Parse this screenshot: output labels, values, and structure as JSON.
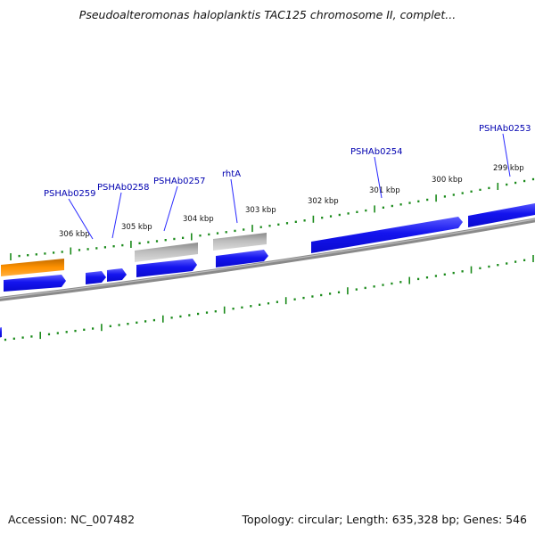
{
  "title": "Pseudoalteromonas haloplanktis TAC125 chromosome II, complet...",
  "footer": {
    "accession": "Accession: NC_007482",
    "summary": "Topology: circular; Length: 635,328 bp; Genes: 546"
  },
  "colors": {
    "forward_gene": "#1a1af0",
    "forward_gene_light": "#6a6aff",
    "reverse_gene": "#b8b8b8",
    "orange_feature": "#f08a00",
    "backbone": "#808080",
    "tick": "#1a8a1a",
    "label": "#0000b0"
  },
  "scale_labels": [
    "306 kbp",
    "305 kbp",
    "304 kbp",
    "303 kbp",
    "302 kbp",
    "301 kbp",
    "300 kbp",
    "299 kbp"
  ],
  "gene_labels": [
    "PSHAb0259",
    "PSHAb0258",
    "PSHAb0257",
    "rhtA",
    "PSHAb0254",
    "PSHAb0253"
  ]
}
